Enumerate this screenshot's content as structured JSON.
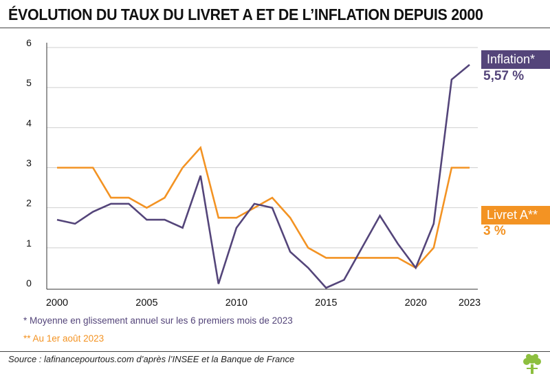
{
  "title": "ÉVOLUTION DU TAUX DU LIVRET A ET DE L’INFLATION DEPUIS 2000",
  "inflation_tag": {
    "label": "Inflation*",
    "value": "5,57  %"
  },
  "livret_tag": {
    "label": "Livret A**",
    "value": "3 %"
  },
  "footnotes": {
    "inflation": "*   Moyenne en glissement annuel sur les 6 premiers mois de 2023",
    "livret": "** Au 1er août 2023"
  },
  "source": "Source : lafinancepourtous.com d’après l’INSEE et la Banque de France",
  "colors": {
    "inflation": "#54457a",
    "livret": "#f39323",
    "grid": "#cfcfcf",
    "text": "#111111"
  },
  "chart_data": {
    "type": "line",
    "x": [
      2000,
      2001,
      2002,
      2003,
      2004,
      2005,
      2006,
      2007,
      2008,
      2009,
      2010,
      2011,
      2012,
      2013,
      2014,
      2015,
      2016,
      2017,
      2018,
      2019,
      2020,
      2021,
      2022,
      2023
    ],
    "x_tick_labels": [
      "2000",
      "2005",
      "2010",
      "2015",
      "2020",
      "2023"
    ],
    "y_tick_labels": [
      "0",
      "1",
      "2",
      "3",
      "4",
      "5",
      "6"
    ],
    "ylim": [
      0,
      6
    ],
    "grid": true,
    "series": [
      {
        "name": "Inflation*",
        "color": "#54457a",
        "values": [
          1.7,
          1.6,
          1.9,
          2.1,
          2.1,
          1.7,
          1.7,
          1.5,
          2.8,
          0.1,
          1.5,
          2.1,
          2.0,
          0.9,
          0.5,
          0.0,
          0.2,
          1.0,
          1.8,
          1.1,
          0.5,
          1.6,
          5.2,
          5.57
        ]
      },
      {
        "name": "Livret A**",
        "color": "#f39323",
        "values": [
          3.0,
          3.0,
          3.0,
          2.25,
          2.25,
          2.0,
          2.25,
          3.0,
          3.5,
          1.75,
          1.75,
          2.0,
          2.25,
          1.75,
          1.0,
          0.75,
          0.75,
          0.75,
          0.75,
          0.75,
          0.5,
          1.0,
          3.0,
          3.0
        ]
      }
    ]
  }
}
